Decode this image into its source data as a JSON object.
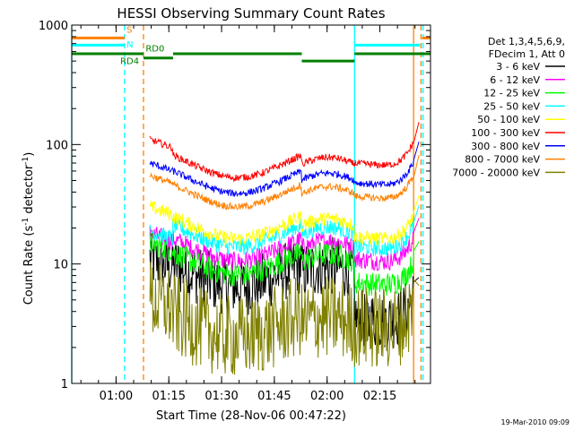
{
  "chart_data": {
    "type": "line",
    "title": "HESSI Observing Summary Count Rates",
    "xlabel": "Start Time (28-Nov-06 00:47:22)",
    "ylabel_main": "Count Rate (s",
    "ylabel_sup1": "-1",
    "ylabel_mid": " detector",
    "ylabel_sup2": "-1",
    "ylabel_end": ")",
    "yscale": "log",
    "ylim": [
      1,
      1000
    ],
    "xlim": [
      0.0,
      1.7
    ],
    "xunit": "hours since 00:47:22",
    "y_ticks": [
      {
        "v": 1,
        "label": "1"
      },
      {
        "v": 10,
        "label": "10"
      },
      {
        "v": 100,
        "label": "100"
      },
      {
        "v": 1000,
        "label": "1000"
      }
    ],
    "x_ticks": [
      {
        "v": 0.21,
        "label": "01:00"
      },
      {
        "v": 0.46,
        "label": "01:15"
      },
      {
        "v": 0.71,
        "label": "01:30"
      },
      {
        "v": 0.96,
        "label": "01:45"
      },
      {
        "v": 1.21,
        "label": "02:00"
      },
      {
        "v": 1.46,
        "label": "02:15"
      }
    ],
    "legend_header": [
      "Det 1,3,4,5,6,9,",
      "FDecim 1, Att 0"
    ],
    "series": [
      {
        "name": "3 - 6 keV",
        "color": "#000000",
        "start": 11,
        "mid": 8,
        "end": 3.5,
        "noise": 0.25
      },
      {
        "name": "6 - 12 keV",
        "color": "#ff00ff",
        "start": 18,
        "mid": 13,
        "end": 11,
        "noise": 0.08
      },
      {
        "name": "12 - 25 keV",
        "color": "#00ff00",
        "start": 15,
        "mid": 10,
        "end": 7,
        "noise": 0.1
      },
      {
        "name": "25 - 50 keV",
        "color": "#00ffff",
        "start": 19,
        "mid": 17,
        "end": 14,
        "noise": 0.07
      },
      {
        "name": "50 - 100 keV",
        "color": "#ffff00",
        "start": 30,
        "mid": 20,
        "end": 17,
        "noise": 0.06
      },
      {
        "name": "100 - 300 keV",
        "color": "#ff0000",
        "start": 110,
        "mid": 65,
        "end": 70,
        "noise": 0.03
      },
      {
        "name": "300 - 800 keV",
        "color": "#0000ff",
        "start": 70,
        "mid": 48,
        "end": 48,
        "noise": 0.03
      },
      {
        "name": "800 - 7000 keV",
        "color": "#ff8000",
        "start": 55,
        "mid": 37,
        "end": 37,
        "noise": 0.03
      },
      {
        "name": "7000 - 20000 keV",
        "color": "#808000",
        "start": 5,
        "mid": 3,
        "end": 3,
        "noise": 0.35
      }
    ],
    "annotations": [
      {
        "text": "S",
        "color": "#ff8000"
      },
      {
        "text": "N",
        "color": "#00ffff"
      },
      {
        "text": "RD4",
        "color": "#008000"
      },
      {
        "text": "RD0",
        "color": "#008000"
      }
    ],
    "flags": {
      "saa_orange": [
        {
          "x0": 0.0,
          "x1": 0.25,
          "y": 780
        },
        {
          "x0": 1.66,
          "x1": 1.7,
          "y": 780
        }
      ],
      "night_cyan": [
        {
          "x0": 0.0,
          "x1": 0.25,
          "y": 680
        },
        {
          "x0": 1.34,
          "x1": 1.65,
          "y": 680
        }
      ],
      "decim_green": [
        {
          "x0": 0.0,
          "x1": 0.34,
          "y": 575
        },
        {
          "x0": 0.34,
          "x1": 0.48,
          "y": 530
        },
        {
          "x0": 0.48,
          "x1": 1.09,
          "y": 575
        },
        {
          "x0": 1.09,
          "x1": 1.34,
          "y": 500
        },
        {
          "x0": 1.34,
          "x1": 1.7,
          "y": 575
        }
      ]
    },
    "vlines": [
      {
        "x": 0.0,
        "color": "#00ffff",
        "style": "solid"
      },
      {
        "x": 0.25,
        "color": "#00ffff",
        "style": "dashed"
      },
      {
        "x": 0.34,
        "color": "#ff8000",
        "style": "dashed"
      },
      {
        "x": 1.34,
        "color": "#00ffff",
        "style": "solid"
      },
      {
        "x": 1.62,
        "color": "#ff8000",
        "style": "solid"
      },
      {
        "x": 1.655,
        "color": "#ff8000",
        "style": "dashed"
      },
      {
        "x": 1.665,
        "color": "#00ffff",
        "style": "dashed"
      }
    ],
    "grid": false,
    "legend_position": "right"
  },
  "footer_timestamp": "19-Mar-2010 09:09"
}
